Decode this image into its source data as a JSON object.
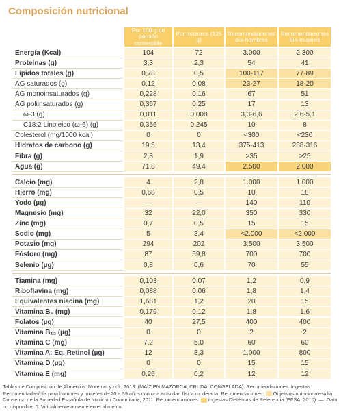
{
  "title": "Composición nutricional",
  "table": {
    "header": [
      "Por 100 g de porción comestible",
      "Por mazorca (125 g)",
      "Recomendaciones día-hombres",
      "Recomendaciones día-mujeres"
    ],
    "groups": [
      {
        "rows": [
          {
            "label": "Energía (Kcal)",
            "cells": [
              "104",
              "72",
              "3.000",
              "2.300"
            ],
            "bold": true
          },
          {
            "label": "Proteínas (g)",
            "cells": [
              "3,3",
              "2,3",
              "54",
              "41"
            ],
            "bold": true
          },
          {
            "label": "Lípidos totales (g)",
            "cells": [
              "0,78",
              "0,5",
              "100-117",
              "77-89"
            ],
            "bold": true,
            "highlight": "light"
          },
          {
            "label": "AG saturados (g)",
            "cells": [
              "0,12",
              "0,08",
              "23-27",
              "18-20"
            ],
            "highlight": "light"
          },
          {
            "label": "AG monoinsaturados (g)",
            "cells": [
              "0,228",
              "0,16",
              "67",
              "51"
            ]
          },
          {
            "label": "AG poliinsaturados (g)",
            "cells": [
              "0,367",
              "0,25",
              "17",
              "13"
            ]
          },
          {
            "label": "ω-3 (g)",
            "cells": [
              "0,011",
              "0,008",
              "3,3-6,6",
              "2,6-5,1"
            ],
            "indent": true
          },
          {
            "label": "C18:2 Linoleico (ω-6) (g)",
            "cells": [
              "0,356",
              "0,245",
              "10",
              "8"
            ],
            "indent": true
          },
          {
            "label": "Colesterol (mg/1000 kcal)",
            "cells": [
              "0",
              "0",
              "<300",
              "<230"
            ]
          },
          {
            "label": "Hidratos de carbono (g)",
            "cells": [
              "19,5",
              "13,4",
              "375-413",
              "288-316"
            ],
            "bold": true
          },
          {
            "label": "Fibra (g)",
            "cells": [
              "2,8",
              "1,9",
              ">35",
              ">25"
            ],
            "bold": true
          },
          {
            "label": "Agua (g)",
            "cells": [
              "71,8",
              "49,4",
              "2.500",
              "2.000"
            ],
            "bold": true,
            "highlight": "strong"
          }
        ]
      },
      {
        "rows": [
          {
            "label": "Calcio (mg)",
            "cells": [
              "4",
              "2,8",
              "1.000",
              "1.000"
            ],
            "bold": true
          },
          {
            "label": "Hierro (mg)",
            "cells": [
              "0,68",
              "0,5",
              "10",
              "18"
            ],
            "bold": true
          },
          {
            "label": "Yodo (µg)",
            "cells": [
              "—",
              "—",
              "140",
              "110"
            ],
            "bold": true
          },
          {
            "label": "Magnesio (mg)",
            "cells": [
              "32",
              "22,0",
              "350",
              "330"
            ],
            "bold": true
          },
          {
            "label": "Zinc (mg)",
            "cells": [
              "0,7",
              "0,5",
              "15",
              "15"
            ],
            "bold": true
          },
          {
            "label": "Sodio (mg)",
            "cells": [
              "5",
              "3,4",
              "<2.000",
              "<2.000"
            ],
            "bold": true,
            "highlight": "light"
          },
          {
            "label": "Potasio (mg)",
            "cells": [
              "294",
              "202",
              "3.500",
              "3.500"
            ],
            "bold": true
          },
          {
            "label": "Fósforo (mg)",
            "cells": [
              "87",
              "59,8",
              "700",
              "700"
            ],
            "bold": true
          },
          {
            "label": "Selenio (µg)",
            "cells": [
              "0,8",
              "0,6",
              "70",
              "55"
            ],
            "bold": true
          }
        ]
      },
      {
        "rows": [
          {
            "label": "Tiamina (mg)",
            "cells": [
              "0,103",
              "0,07",
              "1,2",
              "0,9"
            ],
            "bold": true
          },
          {
            "label": "Riboflavina (mg)",
            "cells": [
              "0,088",
              "0,06",
              "1,8",
              "1,4"
            ],
            "bold": true
          },
          {
            "label": "Equivalentes niacina (mg)",
            "cells": [
              "1,681",
              "1,2",
              "20",
              "15"
            ],
            "bold": true
          },
          {
            "label": "Vitamina B₆ (mg)",
            "cells": [
              "0,179",
              "0,12",
              "1,8",
              "1,6"
            ],
            "bold": true
          },
          {
            "label": "Folatos (µg)",
            "cells": [
              "40",
              "27,5",
              "400",
              "400"
            ],
            "bold": true
          },
          {
            "label": "Vitamina B₁₂ (µg)",
            "cells": [
              "0",
              "0",
              "2",
              "2"
            ],
            "bold": true
          },
          {
            "label": "Vitamina C (mg)",
            "cells": [
              "7,2",
              "5,0",
              "60",
              "60"
            ],
            "bold": true
          },
          {
            "label": "Vitamina A: Eq. Retinol (µg)",
            "cells": [
              "12",
              "8,3",
              "1.000",
              "800"
            ],
            "bold": true
          },
          {
            "label": "Vitamina D (µg)",
            "cells": [
              "0",
              "0",
              "15",
              "15"
            ],
            "bold": true
          },
          {
            "label": "Vitamina E (mg)",
            "cells": [
              "0,26",
              "0,2",
              "12",
              "12"
            ],
            "bold": true
          }
        ]
      }
    ]
  },
  "footnote": [
    "Tablas de Composición de Alimentos. Moreiras y col., 2013. (MAÍZ EN MAZORCA, CRUDA, CONGELADA). Recomendaciones: Ingestas Recomendadas/día para hombres y mujeres de 20 a 39 años con una actividad física moderada. Recomendaciones:",
    "Objetivos nutricionales/día. Consenso de la Sociedad Española de Nutrición Comunitaria, 2011. Recomendaciones:",
    "Ingestas Dietéticas de Referencia (EFSA, 2010). —: Dato no disponible. 0: Virtualmente ausente en el alimento."
  ]
}
